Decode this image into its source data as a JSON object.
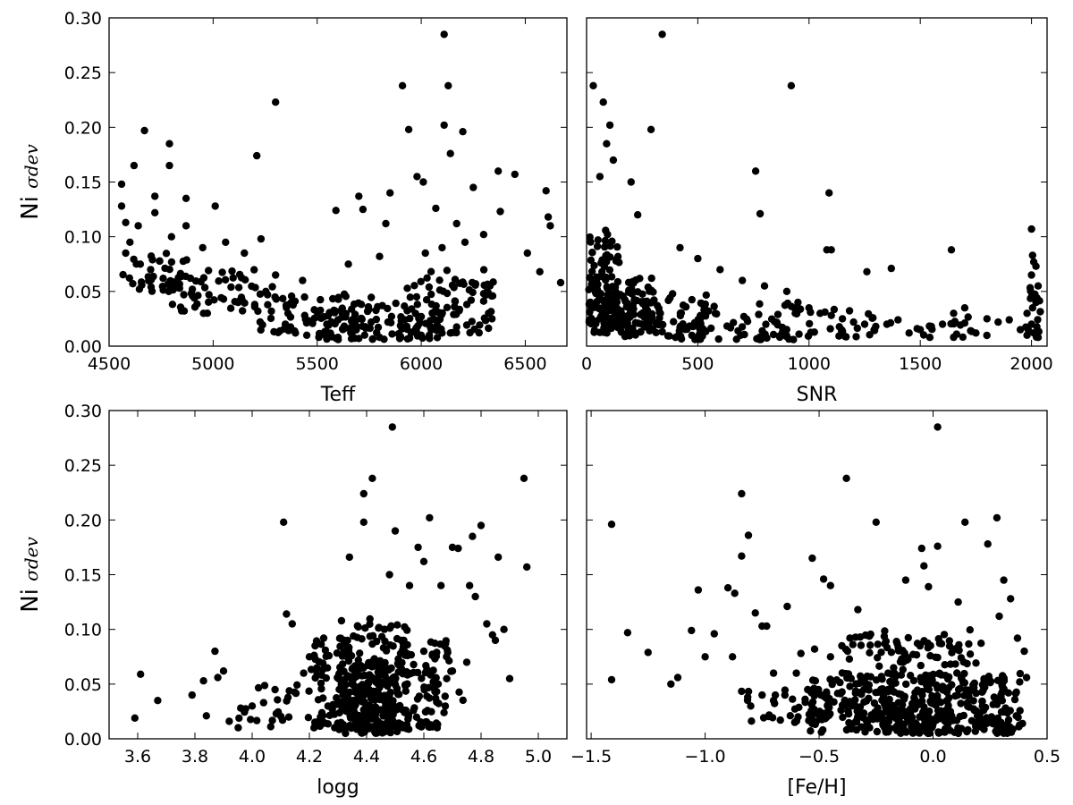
{
  "chart_data": [
    {
      "type": "scatter",
      "panel": "top-left",
      "xlabel": "Teff",
      "ylabel": "Ni σdev",
      "ylabel_main": "Ni",
      "ylabel_sub": "σdev",
      "xlim": [
        4500,
        6700
      ],
      "ylim": [
        0.0,
        0.3
      ],
      "xticks": [
        4500,
        5000,
        5500,
        6000,
        6500
      ],
      "xtick_labels": [
        "4500",
        "5000",
        "5500",
        "6000",
        "6500"
      ],
      "yticks": [
        0.0,
        0.05,
        0.1,
        0.15,
        0.2,
        0.25,
        0.3
      ],
      "ytick_labels": [
        "0.00",
        "0.05",
        "0.10",
        "0.15",
        "0.20",
        "0.25",
        "0.30"
      ],
      "grid": false,
      "points": [
        [
          4560,
          0.148
        ],
        [
          4560,
          0.128
        ],
        [
          4580,
          0.113
        ],
        [
          4620,
          0.165
        ],
        [
          4670,
          0.197
        ],
        [
          4720,
          0.137
        ],
        [
          4720,
          0.122
        ],
        [
          4790,
          0.185
        ],
        [
          4790,
          0.165
        ],
        [
          4870,
          0.135
        ],
        [
          4870,
          0.11
        ],
        [
          5010,
          0.128
        ],
        [
          5060,
          0.095
        ],
        [
          5210,
          0.174
        ],
        [
          5230,
          0.098
        ],
        [
          5300,
          0.223
        ],
        [
          5590,
          0.124
        ],
        [
          5700,
          0.137
        ],
        [
          5720,
          0.125
        ],
        [
          5830,
          0.112
        ],
        [
          5850,
          0.14
        ],
        [
          5910,
          0.238
        ],
        [
          5940,
          0.198
        ],
        [
          5980,
          0.155
        ],
        [
          6010,
          0.15
        ],
        [
          6070,
          0.126
        ],
        [
          6110,
          0.285
        ],
        [
          6110,
          0.202
        ],
        [
          6130,
          0.238
        ],
        [
          6140,
          0.176
        ],
        [
          6170,
          0.112
        ],
        [
          6200,
          0.196
        ],
        [
          6250,
          0.145
        ],
        [
          6370,
          0.16
        ],
        [
          6380,
          0.123
        ],
        [
          6450,
          0.157
        ],
        [
          6510,
          0.085
        ],
        [
          6570,
          0.068
        ],
        [
          6600,
          0.142
        ],
        [
          6610,
          0.118
        ],
        [
          6620,
          0.11
        ],
        [
          6670,
          0.058
        ],
        [
          6300,
          0.102
        ],
        [
          6210,
          0.095
        ],
        [
          6100,
          0.09
        ],
        [
          6020,
          0.085
        ],
        [
          5800,
          0.082
        ],
        [
          5650,
          0.075
        ],
        [
          5430,
          0.06
        ],
        [
          5300,
          0.065
        ],
        [
          5150,
          0.085
        ],
        [
          4950,
          0.09
        ],
        [
          4800,
          0.1
        ],
        [
          4640,
          0.11
        ],
        [
          4600,
          0.095
        ],
        [
          4580,
          0.085
        ],
        [
          4650,
          0.075
        ],
        [
          4700,
          0.07
        ],
        [
          4760,
          0.062
        ],
        [
          4820,
          0.055
        ],
        [
          4900,
          0.052
        ],
        [
          4980,
          0.047
        ],
        [
          5050,
          0.043
        ],
        [
          5120,
          0.04
        ],
        [
          5200,
          0.036
        ],
        [
          5280,
          0.032
        ],
        [
          5360,
          0.03
        ],
        [
          5440,
          0.028
        ],
        [
          5520,
          0.026
        ],
        [
          5600,
          0.024
        ],
        [
          5680,
          0.022
        ],
        [
          5760,
          0.022
        ],
        [
          5840,
          0.022
        ],
        [
          5920,
          0.024
        ],
        [
          6000,
          0.027
        ],
        [
          6080,
          0.031
        ],
        [
          6160,
          0.036
        ],
        [
          6240,
          0.042
        ],
        [
          6300,
          0.048
        ],
        [
          6340,
          0.025
        ],
        [
          6330,
          0.055
        ],
        [
          5450,
          0.01
        ],
        [
          5600,
          0.008
        ],
        [
          5700,
          0.007
        ],
        [
          5800,
          0.008
        ],
        [
          5900,
          0.009
        ],
        [
          6000,
          0.01
        ],
        [
          6100,
          0.012
        ]
      ],
      "cluster_regions": [
        [
          4560,
          4900,
          0.05,
          0.085,
          40
        ],
        [
          4800,
          5300,
          0.03,
          0.07,
          50
        ],
        [
          5200,
          5800,
          0.012,
          0.048,
          70
        ],
        [
          5500,
          6100,
          0.006,
          0.04,
          80
        ],
        [
          5900,
          6350,
          0.012,
          0.07,
          55
        ],
        [
          6000,
          6350,
          0.03,
          0.06,
          20
        ]
      ]
    },
    {
      "type": "scatter",
      "panel": "top-right",
      "xlabel": "SNR",
      "ylabel": "",
      "xlim": [
        0,
        2070
      ],
      "ylim": [
        0.0,
        0.3
      ],
      "xticks": [
        0,
        500,
        1000,
        1500,
        2000
      ],
      "xtick_labels": [
        "0",
        "500",
        "1000",
        "1500",
        "2000"
      ],
      "yticks": [
        0.0,
        0.05,
        0.1,
        0.15,
        0.2,
        0.25,
        0.3
      ],
      "ytick_labels": [],
      "grid": false,
      "points": [
        [
          340,
          0.285
        ],
        [
          30,
          0.238
        ],
        [
          920,
          0.238
        ],
        [
          75,
          0.223
        ],
        [
          105,
          0.202
        ],
        [
          290,
          0.198
        ],
        [
          90,
          0.185
        ],
        [
          120,
          0.17
        ],
        [
          760,
          0.16
        ],
        [
          60,
          0.155
        ],
        [
          1090,
          0.14
        ],
        [
          780,
          0.121
        ],
        [
          200,
          0.15
        ],
        [
          230,
          0.12
        ],
        [
          2000,
          0.107
        ],
        [
          2005,
          0.083
        ],
        [
          2010,
          0.077
        ],
        [
          2020,
          0.073
        ],
        [
          2000,
          0.065
        ],
        [
          1640,
          0.088
        ],
        [
          1100,
          0.088
        ],
        [
          1080,
          0.088
        ],
        [
          1370,
          0.071
        ],
        [
          1260,
          0.068
        ],
        [
          420,
          0.09
        ],
        [
          500,
          0.08
        ],
        [
          600,
          0.07
        ],
        [
          700,
          0.06
        ],
        [
          800,
          0.055
        ],
        [
          900,
          0.05
        ],
        [
          950,
          0.04
        ],
        [
          1000,
          0.035
        ],
        [
          1050,
          0.03
        ],
        [
          1100,
          0.028
        ],
        [
          1150,
          0.025
        ],
        [
          1200,
          0.022
        ],
        [
          1250,
          0.02
        ],
        [
          1300,
          0.018
        ],
        [
          1350,
          0.02
        ],
        [
          1400,
          0.024
        ],
        [
          1450,
          0.012
        ],
        [
          1500,
          0.015
        ],
        [
          1550,
          0.018
        ],
        [
          1600,
          0.02
        ],
        [
          1650,
          0.03
        ],
        [
          1700,
          0.035
        ],
        [
          1750,
          0.012
        ],
        [
          1800,
          0.025
        ],
        [
          1850,
          0.022
        ],
        [
          1900,
          0.024
        ],
        [
          1950,
          0.015
        ],
        [
          1980,
          0.03
        ],
        [
          2000,
          0.02
        ],
        [
          2010,
          0.012
        ],
        [
          2020,
          0.04
        ],
        [
          2030,
          0.055
        ],
        [
          2000,
          0.045
        ],
        [
          2005,
          0.035
        ],
        [
          1980,
          0.01
        ],
        [
          2030,
          0.008
        ]
      ],
      "cluster_regions": [
        [
          10,
          150,
          0.02,
          0.11,
          90
        ],
        [
          30,
          300,
          0.012,
          0.065,
          110
        ],
        [
          150,
          550,
          0.008,
          0.05,
          70
        ],
        [
          400,
          1000,
          0.006,
          0.04,
          60
        ],
        [
          800,
          1300,
          0.008,
          0.035,
          35
        ],
        [
          1300,
          1800,
          0.008,
          0.03,
          18
        ],
        [
          1970,
          2040,
          0.008,
          0.06,
          14
        ]
      ]
    },
    {
      "type": "scatter",
      "panel": "bottom-left",
      "xlabel": "logg",
      "ylabel": "Ni σdev",
      "ylabel_main": "Ni",
      "ylabel_sub": "σdev",
      "xlim": [
        3.5,
        5.1
      ],
      "ylim": [
        0.0,
        0.3
      ],
      "xticks": [
        3.6,
        3.8,
        4.0,
        4.2,
        4.4,
        4.6,
        4.8,
        5.0
      ],
      "xtick_labels": [
        "3.6",
        "3.8",
        "4.0",
        "4.2",
        "4.4",
        "4.6",
        "4.8",
        "5.0"
      ],
      "yticks": [
        0.0,
        0.05,
        0.1,
        0.15,
        0.2,
        0.25,
        0.3
      ],
      "ytick_labels": [
        "0.00",
        "0.05",
        "0.10",
        "0.15",
        "0.20",
        "0.25",
        "0.30"
      ],
      "grid": false,
      "points": [
        [
          3.59,
          0.019
        ],
        [
          3.61,
          0.059
        ],
        [
          3.67,
          0.035
        ],
        [
          3.79,
          0.04
        ],
        [
          3.83,
          0.053
        ],
        [
          3.87,
          0.08
        ],
        [
          3.88,
          0.056
        ],
        [
          3.9,
          0.062
        ],
        [
          3.84,
          0.021
        ],
        [
          3.92,
          0.016
        ],
        [
          3.96,
          0.028
        ],
        [
          4.0,
          0.03
        ],
        [
          4.04,
          0.033
        ],
        [
          4.08,
          0.045
        ],
        [
          4.11,
          0.198
        ],
        [
          4.12,
          0.114
        ],
        [
          4.14,
          0.105
        ],
        [
          4.34,
          0.166
        ],
        [
          4.39,
          0.224
        ],
        [
          4.39,
          0.198
        ],
        [
          4.42,
          0.238
        ],
        [
          4.49,
          0.285
        ],
        [
          4.5,
          0.19
        ],
        [
          4.48,
          0.15
        ],
        [
          4.55,
          0.14
        ],
        [
          4.58,
          0.175
        ],
        [
          4.62,
          0.202
        ],
        [
          4.6,
          0.162
        ],
        [
          4.66,
          0.14
        ],
        [
          4.7,
          0.175
        ],
        [
          4.72,
          0.174
        ],
        [
          4.76,
          0.14
        ],
        [
          4.78,
          0.13
        ],
        [
          4.8,
          0.195
        ],
        [
          4.77,
          0.185
        ],
        [
          4.86,
          0.166
        ],
        [
          4.82,
          0.105
        ],
        [
          4.84,
          0.095
        ],
        [
          4.85,
          0.09
        ],
        [
          4.88,
          0.1
        ],
        [
          4.9,
          0.055
        ],
        [
          4.95,
          0.238
        ],
        [
          4.96,
          0.157
        ],
        [
          4.75,
          0.07
        ],
        [
          4.7,
          0.062
        ],
        [
          4.68,
          0.055
        ],
        [
          4.65,
          0.05
        ],
        [
          4.62,
          0.06
        ],
        [
          4.6,
          0.08
        ],
        [
          4.25,
          0.092
        ],
        [
          4.22,
          0.085
        ],
        [
          4.2,
          0.075
        ],
        [
          4.18,
          0.06
        ]
      ],
      "cluster_regions": [
        [
          3.95,
          4.2,
          0.01,
          0.055,
          25
        ],
        [
          4.2,
          4.35,
          0.01,
          0.09,
          70
        ],
        [
          4.3,
          4.55,
          0.005,
          0.11,
          200
        ],
        [
          4.35,
          4.5,
          0.01,
          0.07,
          120
        ],
        [
          4.5,
          4.65,
          0.01,
          0.08,
          60
        ],
        [
          4.6,
          4.75,
          0.02,
          0.09,
          25
        ]
      ]
    },
    {
      "type": "scatter",
      "panel": "bottom-right",
      "xlabel": "[Fe/H]",
      "ylabel": "",
      "xlim": [
        -1.52,
        0.5
      ],
      "ylim": [
        0.0,
        0.3
      ],
      "xticks": [
        -1.5,
        -1.0,
        -0.5,
        0.0,
        0.5
      ],
      "xtick_labels": [
        "−1.5",
        "−1.0",
        "−0.5",
        "0.0",
        "0.5"
      ],
      "yticks": [
        0.0,
        0.05,
        0.1,
        0.15,
        0.2,
        0.25,
        0.3
      ],
      "ytick_labels": [],
      "grid": false,
      "points": [
        [
          -1.41,
          0.196
        ],
        [
          -1.41,
          0.054
        ],
        [
          -1.34,
          0.097
        ],
        [
          -1.25,
          0.079
        ],
        [
          -1.15,
          0.05
        ],
        [
          -1.12,
          0.056
        ],
        [
          -1.06,
          0.099
        ],
        [
          -1.03,
          0.136
        ],
        [
          -1.0,
          0.075
        ],
        [
          -0.96,
          0.096
        ],
        [
          -0.9,
          0.138
        ],
        [
          -0.87,
          0.133
        ],
        [
          -0.88,
          0.075
        ],
        [
          -0.84,
          0.224
        ],
        [
          -0.84,
          0.167
        ],
        [
          -0.81,
          0.186
        ],
        [
          -0.78,
          0.115
        ],
        [
          -0.75,
          0.103
        ],
        [
          -0.73,
          0.103
        ],
        [
          -0.7,
          0.06
        ],
        [
          -0.64,
          0.121
        ],
        [
          -0.53,
          0.165
        ],
        [
          -0.48,
          0.146
        ],
        [
          -0.45,
          0.14
        ],
        [
          -0.38,
          0.238
        ],
        [
          -0.33,
          0.118
        ],
        [
          -0.25,
          0.198
        ],
        [
          -0.12,
          0.145
        ],
        [
          -0.05,
          0.174
        ],
        [
          -0.04,
          0.158
        ],
        [
          -0.02,
          0.139
        ],
        [
          0.02,
          0.176
        ],
        [
          0.02,
          0.285
        ],
        [
          0.11,
          0.125
        ],
        [
          0.14,
          0.198
        ],
        [
          0.24,
          0.178
        ],
        [
          0.28,
          0.202
        ],
        [
          0.29,
          0.112
        ],
        [
          0.31,
          0.145
        ],
        [
          0.34,
          0.128
        ],
        [
          0.37,
          0.092
        ],
        [
          0.4,
          0.08
        ],
        [
          0.41,
          0.056
        ],
        [
          0.38,
          0.052
        ],
        [
          -0.6,
          0.06
        ],
        [
          -0.55,
          0.045
        ],
        [
          -0.65,
          0.04
        ],
        [
          -0.7,
          0.035
        ],
        [
          -0.75,
          0.04
        ],
        [
          -0.8,
          0.03
        ],
        [
          -0.58,
          0.078
        ],
        [
          -0.52,
          0.082
        ],
        [
          -0.45,
          0.075
        ],
        [
          -0.4,
          0.085
        ]
      ],
      "cluster_regions": [
        [
          -0.85,
          -0.45,
          0.015,
          0.05,
          45
        ],
        [
          -0.55,
          0.35,
          0.005,
          0.06,
          260
        ],
        [
          -0.4,
          0.25,
          0.01,
          0.1,
          120
        ],
        [
          -0.25,
          0.15,
          0.005,
          0.09,
          120
        ],
        [
          0.2,
          0.4,
          0.01,
          0.06,
          30
        ]
      ]
    }
  ]
}
